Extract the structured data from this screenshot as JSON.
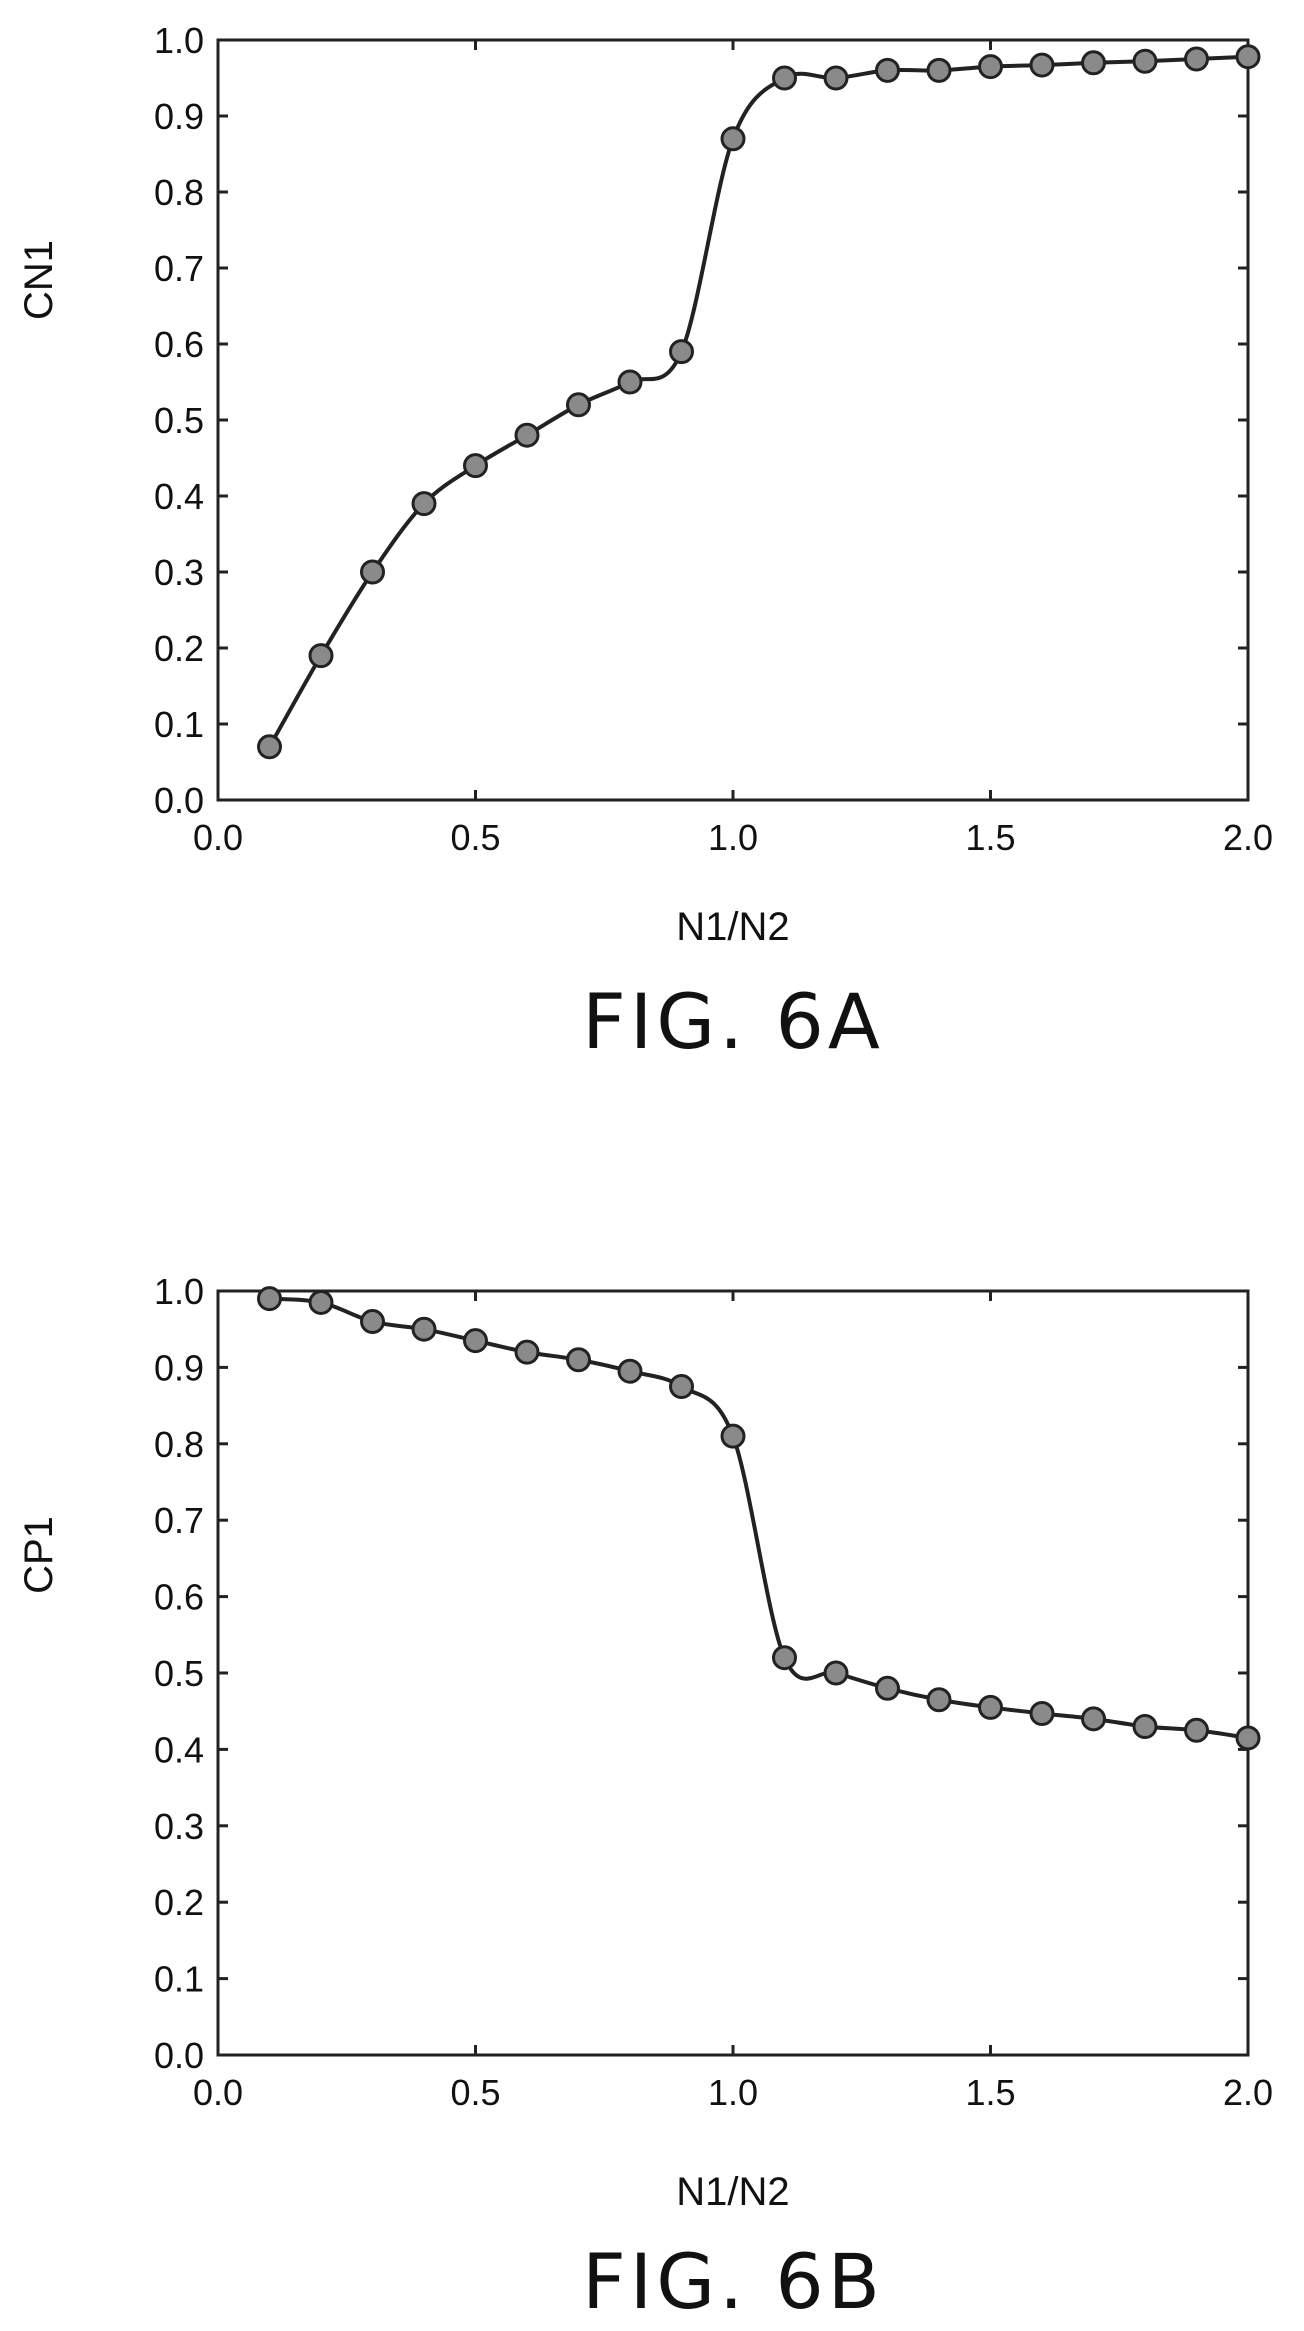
{
  "chart_data": [
    {
      "type": "line",
      "caption": "FIG. 6A",
      "xlabel": "N1/N2",
      "ylabel": "CN1",
      "xlim": [
        0.0,
        2.0
      ],
      "ylim": [
        0.0,
        1.0
      ],
      "xticks": [
        "0.0",
        "0.5",
        "1.0",
        "1.5",
        "2.0"
      ],
      "yticks": [
        "0.0",
        "0.1",
        "0.2",
        "0.3",
        "0.4",
        "0.5",
        "0.6",
        "0.7",
        "0.8",
        "0.9",
        "1.0"
      ],
      "grid": false,
      "series": [
        {
          "x": [
            0.1,
            0.2,
            0.3,
            0.4,
            0.5,
            0.6,
            0.7,
            0.8,
            0.9,
            1.0,
            1.1,
            1.2,
            1.3,
            1.4,
            1.5,
            1.6,
            1.7,
            1.8,
            1.9,
            2.0
          ],
          "y": [
            0.07,
            0.19,
            0.3,
            0.39,
            0.44,
            0.48,
            0.52,
            0.55,
            0.59,
            0.87,
            0.95,
            0.95,
            0.96,
            0.96,
            0.965,
            0.967,
            0.97,
            0.972,
            0.975,
            0.978
          ]
        }
      ]
    },
    {
      "type": "line",
      "caption": "FIG. 6B",
      "xlabel": "N1/N2",
      "ylabel": "CP1",
      "xlim": [
        0.0,
        2.0
      ],
      "ylim": [
        0.0,
        1.0
      ],
      "xticks": [
        "0.0",
        "0.5",
        "1.0",
        "1.5",
        "2.0"
      ],
      "yticks": [
        "0.0",
        "0.1",
        "0.2",
        "0.3",
        "0.4",
        "0.5",
        "0.6",
        "0.7",
        "0.8",
        "0.9",
        "1.0"
      ],
      "grid": false,
      "series": [
        {
          "x": [
            0.1,
            0.2,
            0.3,
            0.4,
            0.5,
            0.6,
            0.7,
            0.8,
            0.9,
            1.0,
            1.1,
            1.2,
            1.3,
            1.4,
            1.5,
            1.6,
            1.7,
            1.8,
            1.9,
            2.0
          ],
          "y": [
            0.99,
            0.985,
            0.96,
            0.95,
            0.935,
            0.92,
            0.91,
            0.895,
            0.875,
            0.81,
            0.52,
            0.5,
            0.48,
            0.465,
            0.455,
            0.447,
            0.44,
            0.43,
            0.425,
            0.415
          ]
        }
      ]
    }
  ]
}
